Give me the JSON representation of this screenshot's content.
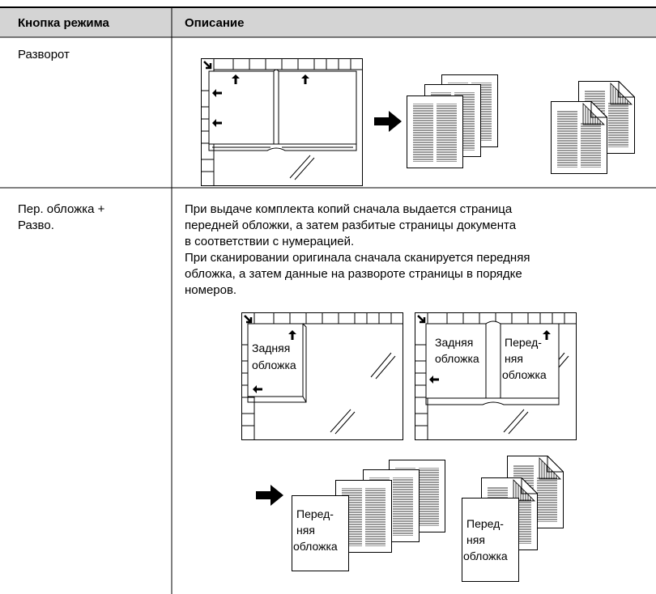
{
  "table": {
    "header": [
      "Кнопка режима",
      "Описание"
    ],
    "rows": [
      {
        "mode": [
          "Разворот"
        ]
      },
      {
        "mode": [
          "Пер. обложка +",
          "Разво."
        ],
        "description": [
          "При выдаче комплекта копий сначала выдается страница",
          "передней обложки, а затем разбитые страницы документа",
          "в соответствии с нумерацией.",
          "При сканировании оригинала сначала сканируется передняя",
          "обложка, а затем данные на развороте страницы в порядке",
          "номеров."
        ],
        "figure_labels": {
          "back_cover": [
            "Задняя",
            "обложка"
          ],
          "front_cover": [
            "Перед-",
            "няя",
            "обложка"
          ]
        }
      }
    ]
  }
}
